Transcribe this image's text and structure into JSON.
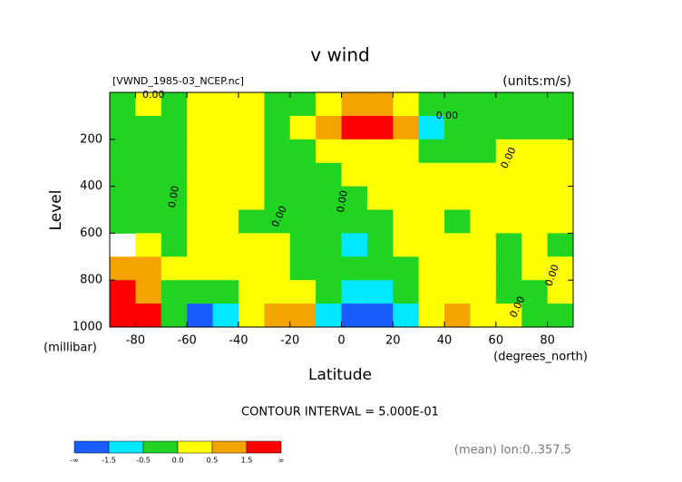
{
  "chart_data": {
    "type": "contour",
    "title": "v wind",
    "subtitle": "[VWND_1985-03_NCEP.nc]",
    "units": "(units:m/s)",
    "y_label": "Level",
    "y_units": "(millibar)",
    "x_label": "Latitude",
    "x_units": "(degrees_north)",
    "contour_note": "CONTOUR INTERVAL = 5.000E-01",
    "footer": "(mean) lon:0..357.5",
    "xlim": [
      -90,
      90
    ],
    "ylim": [
      1000,
      0
    ],
    "xticks": [
      -80,
      -60,
      -40,
      -20,
      0,
      20,
      40,
      60,
      80
    ],
    "yticks": [
      200,
      400,
      600,
      800,
      1000
    ],
    "x": [
      -85,
      -75,
      -65,
      -55,
      -45,
      -35,
      -25,
      -15,
      -5,
      5,
      15,
      25,
      35,
      45,
      55,
      65,
      75,
      85
    ],
    "y": [
      50,
      150,
      250,
      350,
      450,
      550,
      650,
      750,
      850,
      950
    ],
    "z": [
      [
        -0.25,
        0.25,
        -0.25,
        0.25,
        0.25,
        0.25,
        -0.25,
        -0.25,
        0.25,
        1,
        1,
        0.25,
        -0.25,
        -0.25,
        -0.25,
        -0.25,
        -0.25,
        -0.25
      ],
      [
        -0.25,
        -0.25,
        -0.25,
        0.25,
        0.25,
        0.25,
        -0.25,
        0.25,
        1,
        2,
        2,
        1,
        -1,
        -0.25,
        -0.25,
        -0.25,
        -0.25,
        -0.25
      ],
      [
        -0.25,
        -0.25,
        -0.25,
        0.25,
        0.25,
        0.25,
        -0.25,
        -0.25,
        0.25,
        0.25,
        0.25,
        0.25,
        -0.25,
        -0.25,
        -0.25,
        0.25,
        0.25,
        0.25
      ],
      [
        -0.25,
        -0.25,
        -0.25,
        0.25,
        0.25,
        0.25,
        -0.25,
        -0.25,
        -0.25,
        0.25,
        0.25,
        0.25,
        0.25,
        0.25,
        0.25,
        0.25,
        0.25,
        0.25
      ],
      [
        -0.25,
        -0.25,
        -0.25,
        0.25,
        0.25,
        0.25,
        -0.25,
        -0.25,
        -0.25,
        -0.25,
        0.25,
        0.25,
        0.25,
        0.25,
        0.25,
        0.25,
        0.25,
        0.25
      ],
      [
        -0.25,
        -0.25,
        -0.25,
        0.25,
        0.25,
        -0.25,
        -0.25,
        -0.25,
        -0.25,
        -0.25,
        -0.25,
        0.25,
        0.25,
        -0.25,
        0.25,
        0.25,
        0.25,
        0.25
      ],
      [
        null,
        0.25,
        -0.25,
        0.25,
        0.25,
        0.25,
        0.25,
        -0.25,
        -0.25,
        -1,
        -0.25,
        0.25,
        0.25,
        0.25,
        0.25,
        -0.25,
        0.25,
        -0.25
      ],
      [
        1,
        1,
        0.25,
        0.25,
        0.25,
        0.25,
        0.25,
        -0.25,
        -0.25,
        -0.25,
        -0.25,
        -0.25,
        0.25,
        0.25,
        0.25,
        -0.25,
        0.25,
        0.25
      ],
      [
        2,
        1,
        -0.25,
        -0.25,
        -0.25,
        0.25,
        0.25,
        0.25,
        -0.25,
        -1,
        -1,
        -0.25,
        0.25,
        0.25,
        0.25,
        -0.25,
        -0.25,
        0.25
      ],
      [
        2,
        2,
        -0.25,
        -2,
        -1,
        0.25,
        1,
        1,
        -1,
        -2,
        -2,
        -1,
        0.25,
        1,
        0.25,
        0.25,
        -0.25,
        -0.25
      ]
    ],
    "levels": [
      -1.5,
      -0.5,
      {
        "value": 0,
        "label": "0.0"
      },
      0.5,
      1.5
    ],
    "colorbar_ends": [
      "-∞",
      "∞"
    ],
    "colors": [
      "#1a5cff",
      "#00e8ff",
      "#22d422",
      "#ffff00",
      "#f5a300",
      "#ff0000"
    ],
    "annotations": [
      {
        "text": "0.00",
        "x": -73,
        "y": 12
      },
      {
        "text": "0.00",
        "x": 41,
        "y": 100
      },
      {
        "text": "0.00",
        "x": 65,
        "y": 280
      },
      {
        "text": "0.00",
        "x": -65,
        "y": 445
      },
      {
        "text": "0.00",
        "x": -24,
        "y": 530
      },
      {
        "text": "0.00",
        "x": 0.5,
        "y": 465
      },
      {
        "text": "0.00",
        "x": 82,
        "y": 780
      },
      {
        "text": "0.00",
        "x": 68.5,
        "y": 915
      }
    ]
  }
}
